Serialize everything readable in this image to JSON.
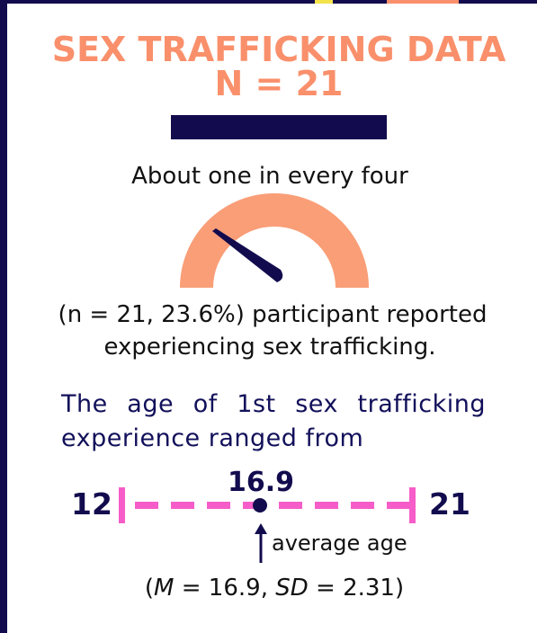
{
  "header": {
    "title": "SEX TRAFFICKING DATA",
    "subtitle": "N = 21"
  },
  "gauge": {
    "caption_above": "About one in every four",
    "caption_below": [
      "(n = 21, 23.6%) participant reported",
      "experiencing sex trafficking."
    ]
  },
  "age": {
    "intro": [
      "The age of 1st sex trafficking",
      "experience ranged from"
    ],
    "min": "12",
    "max": "21",
    "mean": "16.9",
    "pointer": "average age",
    "stats": [
      "(",
      "M",
      " = 16.9, ",
      "SD",
      " = 2.31)"
    ]
  }
}
